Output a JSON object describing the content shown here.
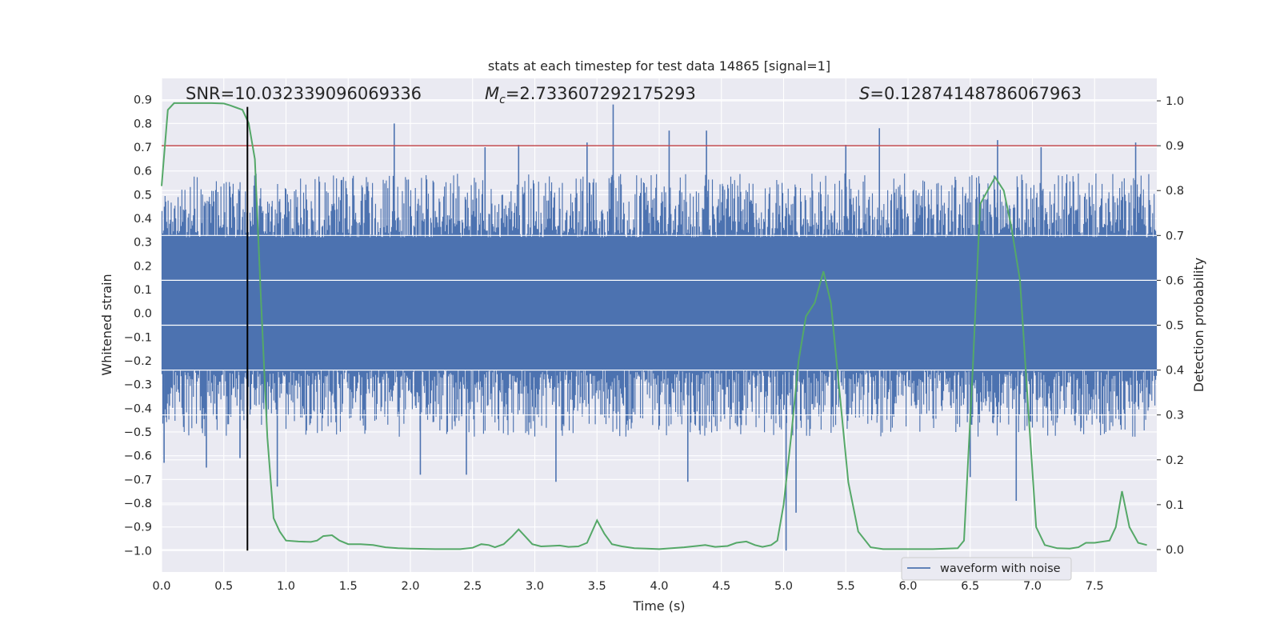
{
  "chart_data": {
    "type": "line",
    "title": "stats at each timestep for test data 14865 [signal=1]",
    "xlabel": "Time (s)",
    "ylabel_left": "Whitened strain",
    "ylabel_right": "Detection probability",
    "xlim": [
      0.0,
      8.0
    ],
    "ylim_left": [
      -1.09,
      0.99
    ],
    "ylim_right": [
      -0.05,
      1.05
    ],
    "x_ticks": [
      "0.0",
      "0.5",
      "1.0",
      "1.5",
      "2.0",
      "2.5",
      "3.0",
      "3.5",
      "4.0",
      "4.5",
      "5.0",
      "5.5",
      "6.0",
      "6.5",
      "7.0",
      "7.5"
    ],
    "y_left_ticks": [
      "0.9",
      "0.8",
      "0.7",
      "0.6",
      "0.5",
      "0.4",
      "0.3",
      "0.2",
      "0.1",
      "0.0",
      "-0.1",
      "-0.2",
      "-0.3",
      "-0.4",
      "-0.5",
      "-0.6",
      "-0.7",
      "-0.8",
      "-0.9",
      "-1.0"
    ],
    "y_right_ticks": [
      "1.0",
      "0.9",
      "0.8",
      "0.7",
      "0.6",
      "0.5",
      "0.4",
      "0.3",
      "0.2",
      "0.1",
      "0.0"
    ],
    "grid": true,
    "legend": {
      "placement": "lower-right",
      "entries": [
        {
          "label": "waveform with noise",
          "color": "#4c72b0"
        }
      ]
    },
    "annotations": {
      "snr": "SNR=10.032339096069336",
      "mc_symbol": "M",
      "mc_sub": "c",
      "mc_value": "=2.733607292175293",
      "s_symbol": "S",
      "s_value": "=0.12874148786067963"
    },
    "threshold": {
      "axis": "right",
      "value": 0.9,
      "color": "#c44e52"
    },
    "marker_line": {
      "x": 0.69,
      "y_range": [
        -1.0,
        0.87
      ],
      "color": "#000000"
    },
    "waveform": {
      "name": "waveform with noise",
      "color": "#4c72b0",
      "note_typical_envelope": [
        -0.45,
        0.5
      ],
      "spikes": [
        [
          1.87,
          0.8
        ],
        [
          3.63,
          0.88
        ],
        [
          3.42,
          0.72
        ],
        [
          4.08,
          0.77
        ],
        [
          4.38,
          0.77
        ],
        [
          5.77,
          0.78
        ],
        [
          6.72,
          0.73
        ],
        [
          2.6,
          0.7
        ],
        [
          2.87,
          0.71
        ],
        [
          5.5,
          0.71
        ],
        [
          7.07,
          0.7
        ],
        [
          7.83,
          0.72
        ],
        [
          0.93,
          -0.73
        ],
        [
          3.17,
          -0.71
        ],
        [
          4.23,
          -0.71
        ],
        [
          5.02,
          -1.0
        ],
        [
          5.1,
          -0.84
        ],
        [
          6.87,
          -0.79
        ],
        [
          6.5,
          -0.69
        ],
        [
          2.08,
          -0.68
        ],
        [
          2.45,
          -0.68
        ],
        [
          0.36,
          -0.65
        ],
        [
          0.63,
          -0.61
        ],
        [
          0.02,
          -0.63
        ]
      ]
    },
    "series": [
      {
        "name": "detection probability",
        "axis": "right",
        "color": "#55a868",
        "x": [
          0.0,
          0.05,
          0.1,
          0.2,
          0.3,
          0.4,
          0.5,
          0.55,
          0.6,
          0.65,
          0.7,
          0.75,
          0.8,
          0.85,
          0.9,
          0.95,
          1.0,
          1.1,
          1.2,
          1.25,
          1.3,
          1.37,
          1.43,
          1.5,
          1.6,
          1.7,
          1.8,
          1.9,
          2.0,
          2.2,
          2.4,
          2.5,
          2.57,
          2.63,
          2.68,
          2.75,
          2.82,
          2.87,
          2.92,
          2.98,
          3.05,
          3.12,
          3.2,
          3.27,
          3.35,
          3.42,
          3.5,
          3.56,
          3.62,
          3.7,
          3.8,
          3.9,
          4.0,
          4.1,
          4.2,
          4.3,
          4.37,
          4.45,
          4.55,
          4.62,
          4.7,
          4.77,
          4.83,
          4.9,
          4.95,
          5.0,
          5.06,
          5.12,
          5.18,
          5.25,
          5.32,
          5.38,
          5.45,
          5.52,
          5.6,
          5.7,
          5.8,
          6.0,
          6.2,
          6.4,
          6.45,
          6.52,
          6.58,
          6.64,
          6.7,
          6.77,
          6.83,
          6.9,
          6.97,
          7.03,
          7.1,
          7.2,
          7.3,
          7.37,
          7.43,
          7.5,
          7.62,
          7.67,
          7.72,
          7.78,
          7.85,
          7.92
        ],
        "values": [
          0.81,
          0.98,
          0.995,
          0.995,
          0.995,
          0.995,
          0.994,
          0.99,
          0.985,
          0.98,
          0.95,
          0.87,
          0.55,
          0.25,
          0.07,
          0.04,
          0.02,
          0.018,
          0.017,
          0.02,
          0.03,
          0.032,
          0.02,
          0.012,
          0.012,
          0.01,
          0.005,
          0.003,
          0.002,
          0.001,
          0.001,
          0.004,
          0.012,
          0.01,
          0.005,
          0.012,
          0.03,
          0.045,
          0.03,
          0.012,
          0.007,
          0.008,
          0.009,
          0.006,
          0.007,
          0.015,
          0.065,
          0.035,
          0.012,
          0.007,
          0.003,
          0.002,
          0.001,
          0.003,
          0.005,
          0.008,
          0.01,
          0.006,
          0.008,
          0.015,
          0.018,
          0.01,
          0.006,
          0.01,
          0.02,
          0.1,
          0.25,
          0.42,
          0.52,
          0.55,
          0.62,
          0.55,
          0.35,
          0.15,
          0.04,
          0.005,
          0.001,
          0.001,
          0.001,
          0.003,
          0.02,
          0.4,
          0.77,
          0.8,
          0.83,
          0.8,
          0.72,
          0.6,
          0.3,
          0.05,
          0.01,
          0.003,
          0.002,
          0.005,
          0.015,
          0.015,
          0.02,
          0.05,
          0.13,
          0.05,
          0.015,
          0.01
        ]
      }
    ]
  }
}
